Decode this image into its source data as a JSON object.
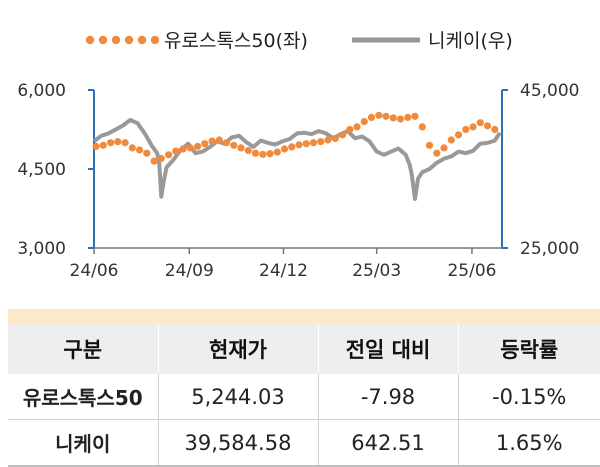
{
  "chart_data": {
    "type": "line",
    "legend_position": "top",
    "x_tick_labels": [
      "24/06",
      "24/09",
      "24/12",
      "25/03",
      "25/06"
    ],
    "y_left": {
      "ylim": [
        3000,
        6000
      ],
      "ticks": [
        "3,000",
        "4,500",
        "6,000"
      ]
    },
    "y_right": {
      "ylim": [
        25000,
        45000
      ],
      "ticks": [
        "25,000",
        "45,000"
      ]
    },
    "grid": false,
    "series": [
      {
        "name": "유로스톡스50(좌)",
        "axis": "left",
        "style": "dotted",
        "color": "#f08a3c",
        "x": [
          "24/06/03",
          "24/06/10",
          "24/06/17",
          "24/06/24",
          "24/07/01",
          "24/07/08",
          "24/07/15",
          "24/07/22",
          "24/07/29",
          "24/08/05",
          "24/08/12",
          "24/08/19",
          "24/08/26",
          "24/09/02",
          "24/09/09",
          "24/09/16",
          "24/09/23",
          "24/09/30",
          "24/10/07",
          "24/10/14",
          "24/10/21",
          "24/10/28",
          "24/11/04",
          "24/11/11",
          "24/11/18",
          "24/11/25",
          "24/12/02",
          "24/12/09",
          "24/12/16",
          "24/12/23",
          "24/12/30",
          "25/01/06",
          "25/01/13",
          "25/01/20",
          "25/01/27",
          "25/02/03",
          "25/02/10",
          "25/02/17",
          "25/02/24",
          "25/03/03",
          "25/03/10",
          "25/03/17",
          "25/03/24",
          "25/03/31",
          "25/04/07",
          "25/04/14",
          "25/04/21",
          "25/04/28",
          "25/05/05",
          "25/05/12",
          "25/05/19",
          "25/05/26",
          "25/06/02",
          "25/06/09",
          "25/06/16",
          "25/06/23"
        ],
        "values": [
          4930,
          4950,
          5000,
          5020,
          5000,
          4900,
          4860,
          4800,
          4650,
          4700,
          4770,
          4840,
          4880,
          4900,
          4930,
          4980,
          5030,
          5050,
          5000,
          4950,
          4900,
          4850,
          4800,
          4780,
          4790,
          4820,
          4880,
          4920,
          4960,
          4980,
          5000,
          5020,
          5050,
          5080,
          5150,
          5250,
          5300,
          5400,
          5480,
          5520,
          5500,
          5470,
          5450,
          5480,
          5500,
          5300,
          4950,
          4800,
          4900,
          5050,
          5150,
          5250,
          5300,
          5380,
          5320,
          5250
        ]
      },
      {
        "name": "니케이(우)",
        "axis": "right",
        "style": "solid",
        "color": "#999999",
        "x": [
          "24/06/01",
          "24/06/08",
          "24/06/15",
          "24/06/22",
          "24/06/29",
          "24/07/06",
          "24/07/13",
          "24/07/20",
          "24/07/24",
          "24/07/27",
          "24/08/01",
          "24/08/03",
          "24/08/05",
          "24/08/07",
          "24/08/10",
          "24/08/17",
          "24/08/24",
          "24/08/31",
          "24/09/07",
          "24/09/14",
          "24/09/21",
          "24/09/28",
          "24/10/05",
          "24/10/12",
          "24/10/19",
          "24/10/26",
          "24/11/02",
          "24/11/09",
          "24/11/16",
          "24/11/23",
          "24/11/30",
          "24/12/07",
          "24/12/14",
          "24/12/21",
          "24/12/28",
          "25/01/04",
          "25/01/11",
          "25/01/18",
          "25/01/25",
          "25/02/01",
          "25/02/08",
          "25/02/15",
          "25/02/22",
          "25/03/01",
          "25/03/08",
          "25/03/15",
          "25/03/22",
          "25/03/29",
          "25/04/02",
          "25/04/04",
          "25/04/07",
          "25/04/10",
          "25/04/14",
          "25/04/21",
          "25/04/28",
          "25/05/05",
          "25/05/12",
          "25/05/19",
          "25/05/26",
          "25/06/02",
          "25/06/09",
          "25/06/16",
          "25/06/23",
          "25/06/28"
        ],
        "values": [
          38500,
          39200,
          39500,
          40000,
          40500,
          41200,
          40800,
          39500,
          38600,
          37900,
          37000,
          35800,
          31500,
          33200,
          35200,
          36200,
          37500,
          38200,
          37000,
          37200,
          37800,
          38500,
          38200,
          39000,
          39200,
          38400,
          37800,
          38600,
          38300,
          38100,
          38500,
          38800,
          39500,
          39600,
          39400,
          39800,
          39500,
          38900,
          39400,
          39800,
          38900,
          39100,
          38500,
          37200,
          36800,
          37200,
          37600,
          36800,
          35500,
          34200,
          31200,
          33800,
          34600,
          35000,
          35800,
          36300,
          36600,
          37200,
          37000,
          37300,
          38200,
          38300,
          38600,
          39585
        ]
      }
    ]
  },
  "table": {
    "headers": [
      "구분",
      "현재가",
      "전일 대비",
      "등락률"
    ],
    "rows": [
      {
        "name": "유로스톡스50",
        "price": "5,244.03",
        "change": "-7.98",
        "pct": "-0.15%"
      },
      {
        "name": "니케이",
        "price": "39,584.58",
        "change": "642.51",
        "pct": "1.65%"
      }
    ]
  }
}
